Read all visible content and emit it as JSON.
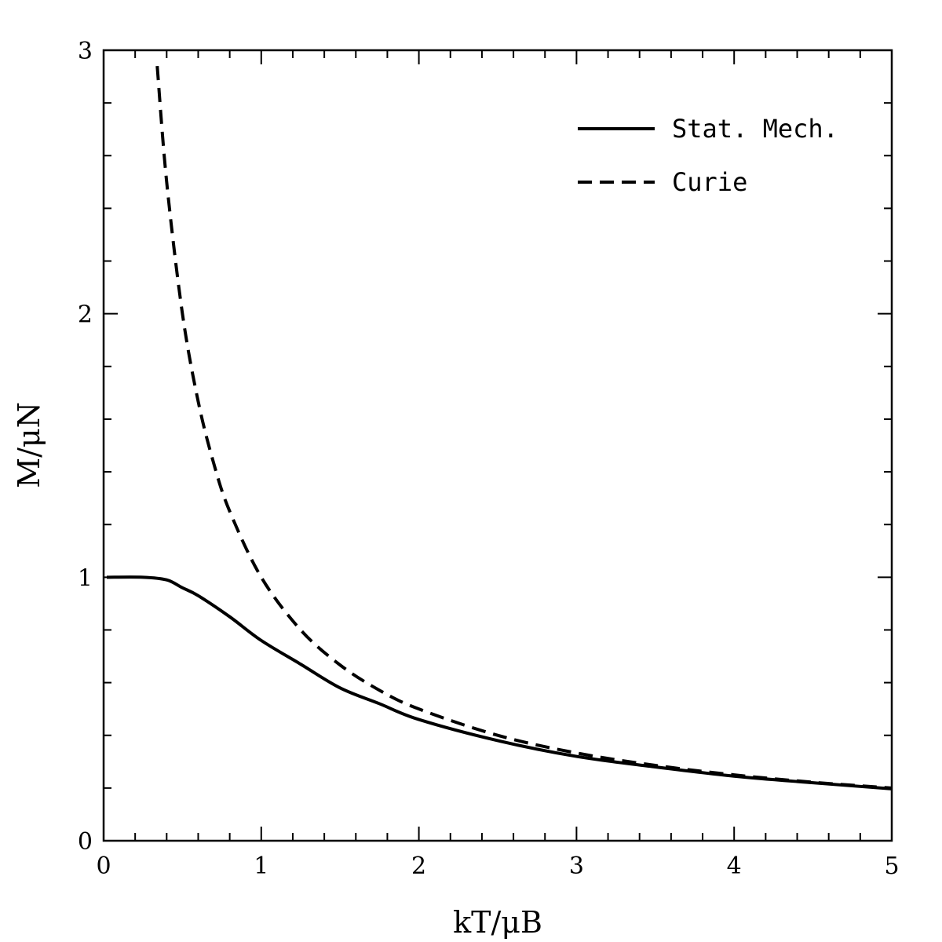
{
  "chart_data": {
    "type": "line",
    "xlabel": "kT/μB",
    "ylabel": "M/μN",
    "xlim": [
      0,
      5
    ],
    "ylim": [
      0,
      3
    ],
    "x_ticks": [
      "0",
      "1",
      "2",
      "3",
      "4",
      "5"
    ],
    "y_ticks": [
      "0",
      "1",
      "2",
      "3"
    ],
    "grid": false,
    "legend_position": "top-right",
    "series": [
      {
        "name": "Stat. Mech.",
        "style": "solid",
        "color": "#000000",
        "x": [
          0.02,
          0.25,
          0.4,
          0.5,
          0.6,
          0.8,
          1.0,
          1.25,
          1.5,
          1.75,
          2.0,
          2.5,
          3.0,
          3.5,
          4.0,
          4.5,
          5.0
        ],
        "y": [
          1.0,
          1.0,
          0.99,
          0.96,
          0.93,
          0.85,
          0.76,
          0.67,
          0.58,
          0.52,
          0.46,
          0.38,
          0.32,
          0.28,
          0.245,
          0.22,
          0.197
        ]
      },
      {
        "name": "Curie",
        "style": "dashed",
        "color": "#000000",
        "x": [
          0.34,
          0.4,
          0.5,
          0.6,
          0.7,
          0.8,
          1.0,
          1.25,
          1.5,
          1.75,
          2.0,
          2.5,
          3.0,
          3.5,
          4.0,
          4.5,
          5.0
        ],
        "y": [
          2.94,
          2.5,
          2.0,
          1.667,
          1.429,
          1.25,
          1.0,
          0.8,
          0.667,
          0.571,
          0.5,
          0.4,
          0.333,
          0.286,
          0.25,
          0.222,
          0.2
        ]
      }
    ]
  }
}
